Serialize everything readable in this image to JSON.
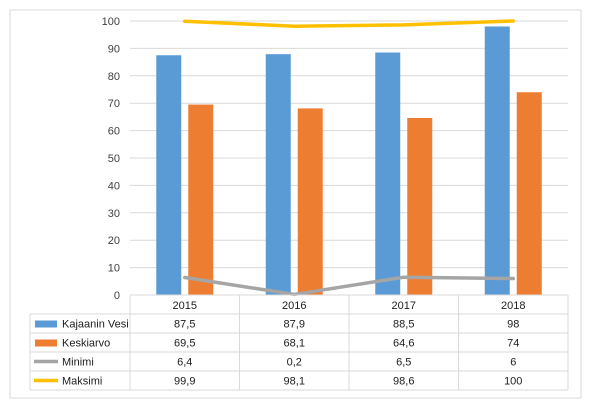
{
  "chart_data": {
    "type": "bar",
    "categories": [
      "2015",
      "2016",
      "2017",
      "2018"
    ],
    "series": [
      {
        "name": "Kajaanin Vesi",
        "kind": "bar",
        "color": "#5b9bd5",
        "values": [
          87.5,
          87.9,
          88.5,
          98
        ],
        "labels": [
          "87,5",
          "87,9",
          "88,5",
          "98"
        ]
      },
      {
        "name": "Keskiarvo",
        "kind": "bar",
        "color": "#ed7d31",
        "values": [
          69.5,
          68.1,
          64.6,
          74
        ],
        "labels": [
          "69,5",
          "68,1",
          "64,6",
          "74"
        ]
      },
      {
        "name": "Minimi",
        "kind": "line",
        "color": "#a5a5a5",
        "values": [
          6.4,
          0.2,
          6.5,
          6
        ],
        "labels": [
          "6,4",
          "0,2",
          "6,5",
          "6"
        ]
      },
      {
        "name": "Maksimi",
        "kind": "line",
        "color": "#ffc000",
        "values": [
          99.9,
          98.1,
          98.6,
          100
        ],
        "labels": [
          "99,9",
          "98,1",
          "98,6",
          "100"
        ]
      }
    ],
    "y_ticks": [
      "0",
      "10",
      "20",
      "30",
      "40",
      "50",
      "60",
      "70",
      "80",
      "90",
      "100"
    ],
    "ylim": [
      0,
      100
    ],
    "grid": true,
    "legend": "data-table"
  }
}
